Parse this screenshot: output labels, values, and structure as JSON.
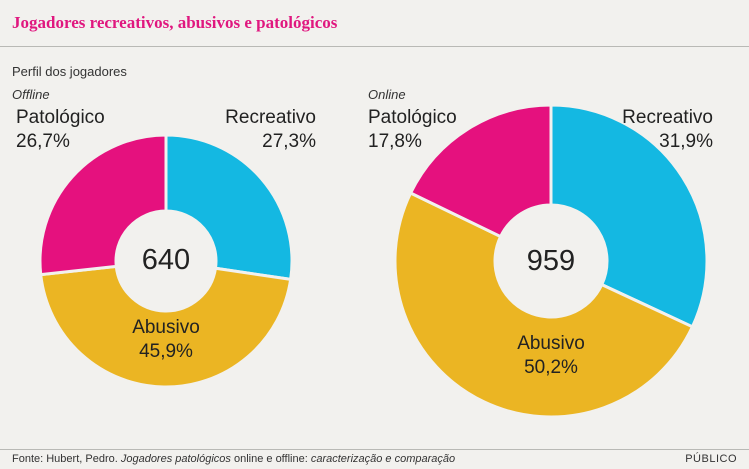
{
  "title": "Jogadores recreativos, abusivos e patológicos",
  "subtitle": "Perfil dos jogadores",
  "source": {
    "prefix": "Fonte: Hubert, Pedro. ",
    "italic": "Jogadores patológicos",
    "mid": " online e offline: ",
    "italic2": "caracterização e comparação"
  },
  "brand": "PÚBLICO",
  "colors": {
    "Recreativo": "#14b8e2",
    "Abusivo": "#ebb523",
    "Patológico": "#e5117e",
    "title": "#e0177f"
  },
  "chart_data": [
    {
      "type": "pie",
      "panel": "Offline",
      "total": "640",
      "categories": [
        "Recreativo",
        "Abusivo",
        "Patológico"
      ],
      "values": [
        27.3,
        45.9,
        26.7
      ],
      "value_labels": [
        "27,3%",
        "45,9%",
        "26,7%"
      ]
    },
    {
      "type": "pie",
      "panel": "Online",
      "total": "959",
      "categories": [
        "Recreativo",
        "Abusivo",
        "Patológico"
      ],
      "values": [
        31.9,
        50.2,
        17.8
      ],
      "value_labels": [
        "31,9%",
        "50,2%",
        "17,8%"
      ]
    }
  ]
}
